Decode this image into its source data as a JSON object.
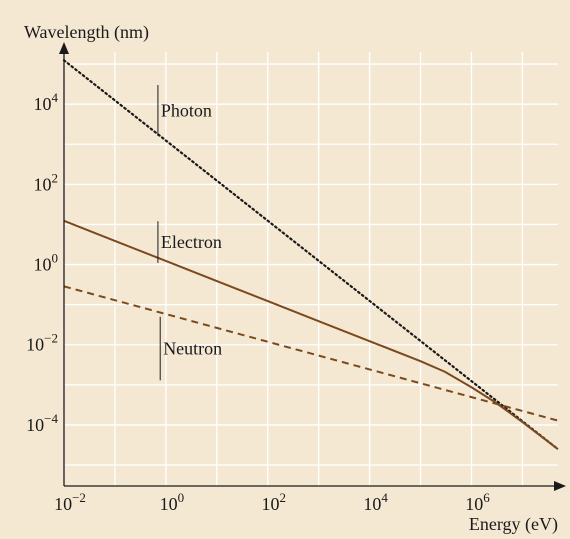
{
  "chart_data": {
    "type": "line",
    "xlabel": "Energy (eV)",
    "ylabel": "Wavelength (nm)",
    "x_scale": "log",
    "y_scale": "log",
    "xlim": [
      0.01,
      50000000
    ],
    "ylim": [
      3e-06,
      200000
    ],
    "x_ticks": [
      {
        "value": 0.01,
        "base": "10",
        "exp": "−2"
      },
      {
        "value": 1,
        "base": "10",
        "exp": "0"
      },
      {
        "value": 100,
        "base": "10",
        "exp": "2"
      },
      {
        "value": 10000,
        "base": "10",
        "exp": "4"
      },
      {
        "value": 1000000,
        "base": "10",
        "exp": "6"
      }
    ],
    "y_ticks": [
      {
        "value": 0.0001,
        "base": "10",
        "exp": "−4"
      },
      {
        "value": 0.01,
        "base": "10",
        "exp": "−2"
      },
      {
        "value": 1,
        "base": "10",
        "exp": "0"
      },
      {
        "value": 100,
        "base": "10",
        "exp": "2"
      },
      {
        "value": 10000,
        "base": "10",
        "exp": "4"
      }
    ],
    "grid": true,
    "series": [
      {
        "name": "Photon",
        "style": "dotted",
        "color": "#1a1a1a",
        "x": [
          0.01,
          50000000
        ],
        "y": [
          124000,
          2.48e-05
        ]
      },
      {
        "name": "Electron",
        "style": "solid",
        "color": "#7a4a1e",
        "x": [
          0.01,
          0.1,
          1,
          10,
          100,
          1000,
          10000,
          100000,
          300000,
          1000000,
          3000000,
          10000000,
          50000000
        ],
        "y": [
          12.3,
          3.88,
          1.23,
          0.388,
          0.123,
          0.0388,
          0.0123,
          0.00388,
          0.00212,
          0.00087,
          0.00036,
          0.000118,
          2.48e-05
        ]
      },
      {
        "name": "Neutron",
        "style": "dashed",
        "color": "#7a4a1e",
        "x": [
          0.01,
          50000000
        ],
        "y": [
          0.286,
          0.000128
        ]
      }
    ]
  }
}
